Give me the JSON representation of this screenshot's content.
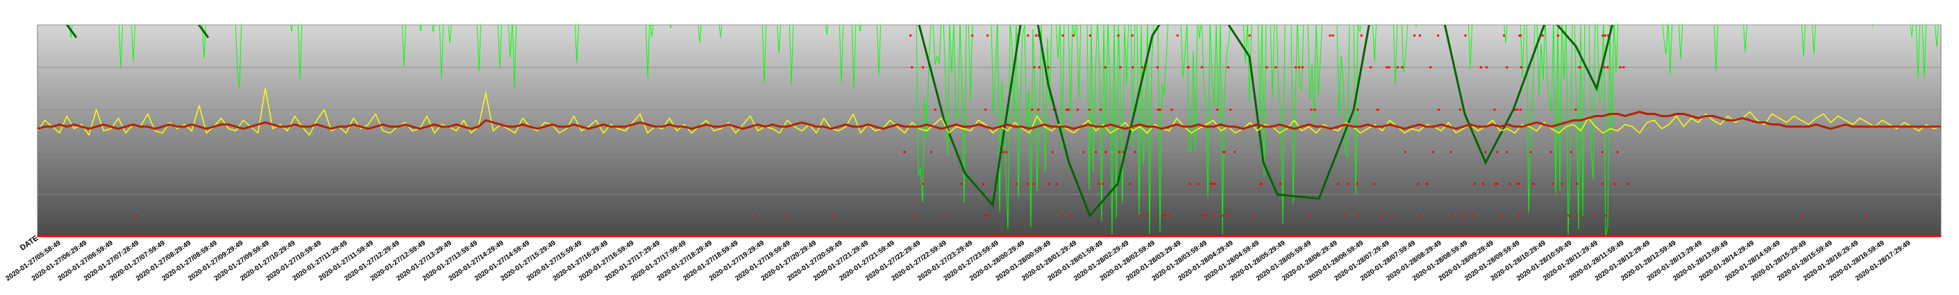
{
  "chart_data": {
    "type": "line",
    "title": "",
    "xlabel": "DATE",
    "ylabel": "",
    "grid": true,
    "legend": "none",
    "background": "gray-gradient",
    "colors": {
      "plot_top": "#d6d6d6",
      "plot_bottom": "#4a4a4a",
      "gridline": "#8c8c8c",
      "raw_series": "#ffff00",
      "smooth_series": "#b22200",
      "second_raw_series": "#00ff00",
      "second_smooth_series": "#006400",
      "event_markers": "#ff0000",
      "baseline": "#ff0000"
    },
    "x_tick_labels": [
      "2020-01-27/05:58:49",
      "2020-01-27/06:29:49",
      "2020-01-27/06:59:49",
      "2020-01-27/07:28:49",
      "2020-01-27/07:59:49",
      "2020-01-27/08:29:49",
      "2020-01-27/08:59:49",
      "2020-01-27/09:29:49",
      "2020-01-27/09:59:49",
      "2020-01-27/10:29:49",
      "2020-01-27/10:59:49",
      "2020-01-27/11:29:49",
      "2020-01-27/11:59:49",
      "2020-01-27/12:29:49",
      "2020-01-27/12:59:49",
      "2020-01-27/13:29:49",
      "2020-01-27/13:59:49",
      "2020-01-27/14:29:49",
      "2020-01-27/14:59:49",
      "2020-01-27/15:29:49",
      "2020-01-27/15:59:49",
      "2020-01-27/16:29:49",
      "2020-01-27/16:59:49",
      "2020-01-27/17:29:49",
      "2020-01-27/17:59:49",
      "2020-01-27/18:29:49",
      "2020-01-27/18:59:49",
      "2020-01-27/19:29:49",
      "2020-01-27/19:59:49",
      "2020-01-27/20:29:49",
      "2020-01-27/20:59:49",
      "2020-01-27/21:29:49",
      "2020-01-27/21:59:49",
      "2020-01-27/22:29:49",
      "2020-01-27/22:59:49",
      "2020-01-27/23:29:49",
      "2020-01-27/23:59:49",
      "2020-01-28/00:29:49",
      "2020-01-28/00:59:49",
      "2020-01-28/01:29:49",
      "2020-01-28/01:59:49",
      "2020-01-28/02:29:49",
      "2020-01-28/02:59:49",
      "2020-01-28/03:29:49",
      "2020-01-28/03:59:49",
      "2020-01-28/04:29:49",
      "2020-01-28/04:59:49",
      "2020-01-28/05:29:49",
      "2020-01-28/05:59:49",
      "2020-01-28/06:29:49",
      "2020-01-28/06:59:49",
      "2020-01-28/07:29:49",
      "2020-01-28/07:59:49",
      "2020-01-28/08:29:49",
      "2020-01-28/08:59:49",
      "2020-01-28/09:29:49",
      "2020-01-28/09:59:49",
      "2020-01-28/10:29:49",
      "2020-01-28/10:59:49",
      "2020-01-28/11:29:49",
      "2020-01-28/11:59:49",
      "2020-01-28/12:29:49",
      "2020-01-28/12:59:49",
      "2020-01-28/13:29:49",
      "2020-01-28/13:59:49",
      "2020-01-28/14:29:49",
      "2020-01-28/14:59:49",
      "2020-01-28/15:29:49",
      "2020-01-28/15:59:49",
      "2020-01-28/16:29:49",
      "2020-01-28/16:59:49",
      "2020-01-28/17:29:49"
    ],
    "y_axis": {
      "min": 0,
      "max": 100,
      "gridlines": [
        20,
        40,
        60,
        80,
        100
      ],
      "tick_labels": []
    },
    "series": [
      {
        "role": "raw-noisy",
        "color": "#ffff00",
        "values": [
          50,
          55,
          52,
          49,
          57,
          51,
          53,
          48,
          60,
          50,
          51,
          56,
          49,
          53,
          52,
          58,
          50,
          49,
          54,
          51,
          53,
          50,
          62,
          49,
          52,
          56,
          51,
          50,
          55,
          52,
          49,
          70,
          51,
          53,
          50,
          57,
          52,
          48,
          55,
          60,
          50,
          52,
          49,
          56,
          51,
          53,
          58,
          50,
          49,
          52,
          54,
          50,
          51,
          57,
          49,
          53,
          52,
          50,
          55,
          49,
          52,
          68,
          50,
          53,
          51,
          49,
          56,
          52,
          50,
          54,
          53,
          49,
          51,
          57,
          50,
          52,
          55,
          49,
          53,
          51,
          50,
          54,
          58,
          49,
          52,
          51,
          56,
          50,
          53,
          49,
          52,
          55,
          50,
          51,
          54,
          49,
          53,
          57,
          50,
          52,
          51,
          49,
          55,
          52,
          50,
          53,
          49,
          56,
          51,
          50,
          52,
          58,
          49,
          53,
          50,
          51,
          55,
          52,
          49,
          54,
          51,
          50,
          53,
          56,
          49,
          52,
          51,
          50,
          55,
          53,
          49,
          52,
          50,
          54,
          51,
          49,
          57,
          52,
          50,
          53,
          51,
          49,
          52,
          55,
          50,
          53,
          49,
          51,
          54,
          50,
          52,
          49,
          53,
          51,
          50,
          56,
          52,
          49,
          51,
          53,
          55,
          50,
          52,
          49,
          51,
          54,
          50,
          53,
          52,
          49,
          51,
          55,
          50,
          52,
          49,
          53,
          51,
          50,
          54,
          52,
          49,
          51,
          53,
          50,
          55,
          52,
          49,
          51,
          50,
          53,
          52,
          50,
          54,
          49,
          51,
          53,
          50,
          52,
          55,
          50,
          51,
          49,
          53,
          52,
          50,
          54,
          51,
          49,
          52,
          53,
          50,
          56,
          52,
          49,
          51,
          50,
          53,
          52,
          49,
          54,
          55,
          51,
          53,
          57,
          52,
          56,
          54,
          58,
          55,
          53,
          57,
          54,
          56,
          59,
          55,
          53,
          58,
          56,
          54,
          57,
          55,
          53,
          56,
          58,
          54,
          57,
          55,
          53,
          56,
          54,
          52,
          55,
          53,
          51,
          54,
          52,
          50,
          53,
          51,
          52
        ]
      },
      {
        "role": "smoothed",
        "color": "#b22200",
        "values": [
          51,
          52,
          52,
          53,
          52,
          53,
          52,
          51,
          52,
          53,
          52,
          51,
          52,
          53,
          52,
          52,
          51,
          52,
          53,
          52,
          52,
          53,
          52,
          51,
          52,
          53,
          53,
          52,
          51,
          52,
          53,
          54,
          53,
          52,
          52,
          53,
          52,
          52,
          53,
          52,
          51,
          52,
          52,
          53,
          52,
          51,
          52,
          53,
          52,
          52,
          53,
          52,
          51,
          52,
          53,
          52,
          52,
          53,
          52,
          51,
          52,
          55,
          54,
          53,
          52,
          52,
          53,
          52,
          51,
          52,
          53,
          52,
          52,
          53,
          52,
          51,
          52,
          53,
          52,
          52,
          52,
          53,
          54,
          53,
          52,
          52,
          53,
          52,
          52,
          51,
          52,
          53,
          52,
          52,
          53,
          52,
          51,
          52,
          53,
          52,
          53,
          52,
          52,
          53,
          54,
          53,
          52,
          52,
          51,
          52,
          53,
          52,
          52,
          53,
          52,
          51,
          52,
          53,
          52,
          52,
          52,
          53,
          52,
          51,
          52,
          53,
          52,
          52,
          53,
          52,
          51,
          52,
          53,
          52,
          52,
          51,
          52,
          53,
          52,
          52,
          52,
          51,
          52,
          53,
          52,
          52,
          53,
          52,
          51,
          52,
          53,
          52,
          52,
          51,
          52,
          53,
          52,
          52,
          53,
          52,
          52,
          53,
          52,
          52,
          51,
          52,
          53,
          52,
          52,
          53,
          52,
          51,
          52,
          53,
          52,
          52,
          51,
          52,
          53,
          52,
          52,
          53,
          52,
          52,
          53,
          52,
          51,
          52,
          53,
          52,
          52,
          53,
          52,
          51,
          52,
          53,
          52,
          52,
          53,
          52,
          53,
          52,
          52,
          53,
          54,
          53,
          52,
          53,
          54,
          55,
          55,
          56,
          57,
          57,
          58,
          58,
          57,
          58,
          59,
          58,
          58,
          57,
          57,
          58,
          58,
          57,
          56,
          57,
          57,
          56,
          55,
          55,
          56,
          55,
          54,
          54,
          53,
          53,
          52,
          52,
          52,
          52,
          53,
          52,
          51,
          52,
          53,
          52,
          52,
          52,
          52,
          52,
          52,
          52,
          52,
          52,
          52,
          52,
          52,
          52
        ]
      }
    ]
  }
}
